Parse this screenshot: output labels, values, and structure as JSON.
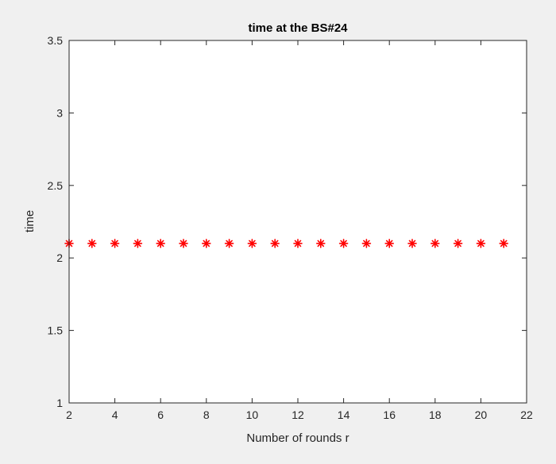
{
  "chart_data": {
    "type": "scatter",
    "title": "time at the BS#24",
    "xlabel": "Number of rounds r",
    "ylabel": "time",
    "xlim": [
      2,
      22
    ],
    "ylim": [
      1,
      3.5
    ],
    "x_ticks": [
      2,
      4,
      6,
      8,
      10,
      12,
      14,
      16,
      18,
      20,
      22
    ],
    "y_ticks": [
      1,
      1.5,
      2,
      2.5,
      3,
      3.5
    ],
    "x_tick_labels": [
      "2",
      "4",
      "6",
      "8",
      "10",
      "12",
      "14",
      "16",
      "18",
      "20",
      "22"
    ],
    "y_tick_labels": [
      "1",
      "1.5",
      "2",
      "2.5",
      "3",
      "3.5"
    ],
    "grid": false,
    "legend": "none",
    "series": [
      {
        "marker": "asterisk",
        "color": "#ff0000",
        "x": [
          2,
          3,
          4,
          5,
          6,
          7,
          8,
          9,
          10,
          11,
          12,
          13,
          14,
          15,
          16,
          17,
          18,
          19,
          20,
          21
        ],
        "y": [
          2.1,
          2.1,
          2.1,
          2.1,
          2.1,
          2.1,
          2.1,
          2.1,
          2.1,
          2.1,
          2.1,
          2.1,
          2.1,
          2.1,
          2.1,
          2.1,
          2.1,
          2.1,
          2.1,
          2.1
        ]
      }
    ]
  }
}
